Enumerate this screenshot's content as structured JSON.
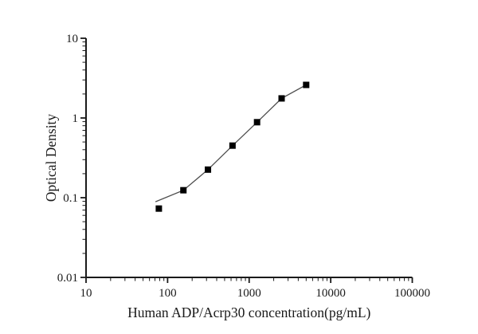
{
  "figure": {
    "background": "#ffffff",
    "axis_color": "#1a1a1a",
    "text_color": "#1a1a1a",
    "line_color": "#4d4d4d",
    "marker_color": "#000000"
  },
  "chart_data": {
    "type": "scatter",
    "title": "",
    "xlabel": "Human ADP/Acrp30 concentration(pg/mL)",
    "ylabel": "Optical Density",
    "x_scale": "log",
    "y_scale": "log",
    "xlim": [
      10,
      100000
    ],
    "ylim": [
      0.01,
      10
    ],
    "x_ticks": [
      "10",
      "100",
      "1000",
      "10000",
      "100000"
    ],
    "y_ticks": [
      "0.01",
      "0.1",
      "1",
      "10"
    ],
    "grid": false,
    "legend_position": "none",
    "series": [
      {
        "name": "standard-curve-points",
        "marker": "filled-square",
        "x": [
          78.125,
          156.25,
          312.5,
          625,
          1250,
          2500,
          5000
        ],
        "y": [
          0.073,
          0.124,
          0.225,
          0.45,
          0.885,
          1.76,
          2.6
        ]
      }
    ],
    "fit_line": {
      "name": "fitted-curve",
      "x": [
        71,
        156.25,
        312.5,
        625,
        1250,
        2500,
        5000
      ],
      "y": [
        0.089,
        0.124,
        0.225,
        0.45,
        0.885,
        1.76,
        2.6
      ]
    }
  }
}
